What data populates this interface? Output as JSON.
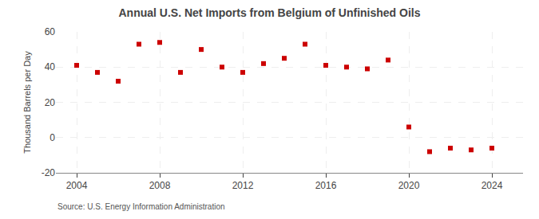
{
  "chart_data": {
    "type": "scatter",
    "title": "Annual U.S. Net Imports from Belgium of Unfinished Oils",
    "ylabel": "Thousand Barrels per Day",
    "annotations": [
      "Source: U.S. Energy Information Administration"
    ],
    "x": [
      2004,
      2005,
      2006,
      2007,
      2008,
      2009,
      2010,
      2011,
      2012,
      2013,
      2014,
      2015,
      2016,
      2017,
      2018,
      2019,
      2020,
      2021,
      2022,
      2023,
      2024
    ],
    "values": [
      41,
      37,
      32,
      53,
      54,
      37,
      50,
      40,
      37,
      42,
      45,
      53,
      41,
      40,
      39,
      44,
      6,
      -8,
      -6,
      -7,
      -6
    ],
    "color": "#cc0000",
    "marker": "square",
    "xlim": [
      2003.0,
      2025.5
    ],
    "ylim": [
      -20,
      60
    ],
    "xticks": [
      2004,
      2008,
      2012,
      2016,
      2020,
      2024
    ],
    "yticks": [
      -20,
      0,
      20,
      40,
      60
    ],
    "grid": true
  }
}
